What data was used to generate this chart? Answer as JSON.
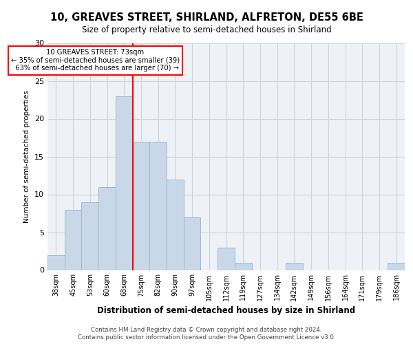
{
  "title_line1": "10, GREAVES STREET, SHIRLAND, ALFRETON, DE55 6BE",
  "title_line2": "Size of property relative to semi-detached houses in Shirland",
  "xlabel": "Distribution of semi-detached houses by size in Shirland",
  "ylabel": "Number of semi-detached properties",
  "footer_line1": "Contains HM Land Registry data © Crown copyright and database right 2024.",
  "footer_line2": "Contains public sector information licensed under the Open Government Licence v3.0.",
  "categories": [
    "38sqm",
    "45sqm",
    "53sqm",
    "60sqm",
    "68sqm",
    "75sqm",
    "82sqm",
    "90sqm",
    "97sqm",
    "105sqm",
    "112sqm",
    "119sqm",
    "127sqm",
    "134sqm",
    "142sqm",
    "149sqm",
    "156sqm",
    "164sqm",
    "171sqm",
    "179sqm",
    "186sqm"
  ],
  "values": [
    2,
    8,
    9,
    11,
    23,
    17,
    17,
    12,
    7,
    0,
    3,
    1,
    0,
    0,
    1,
    0,
    0,
    0,
    0,
    0,
    1
  ],
  "bar_color": "#c8d8e8",
  "bar_edge_color": "#a0b8cc",
  "grid_color": "#ccd4dc",
  "property_label": "10 GREAVES STREET: 73sqm",
  "pct_smaller": 35,
  "count_smaller": 39,
  "pct_larger": 63,
  "count_larger": 70,
  "vline_x_index": 4.5,
  "ylim": [
    0,
    30
  ],
  "yticks": [
    0,
    5,
    10,
    15,
    20,
    25,
    30
  ],
  "background_color": "#eef2f7"
}
